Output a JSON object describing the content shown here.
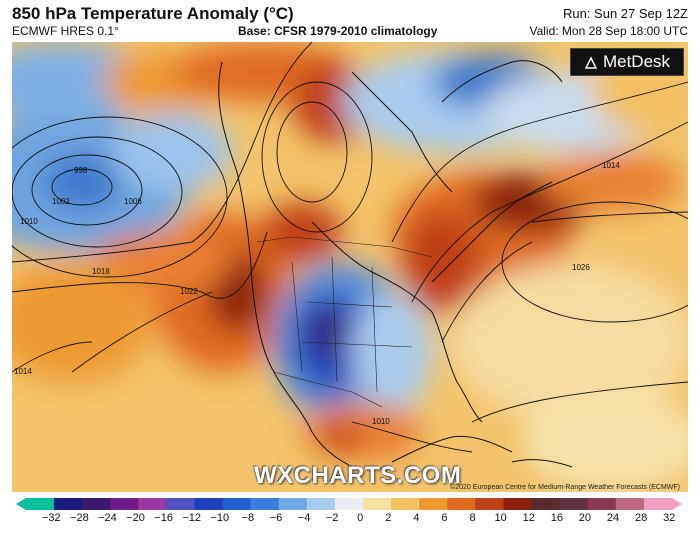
{
  "header": {
    "title": "850 hPa Temperature Anomaly (°C)",
    "model": "ECMWF HRES 0.1°",
    "base": "Base: CFSR 1979-2010 climatology",
    "run": "Run: Sun 27 Sep 12Z",
    "valid": "Valid: Mon 28 Sep 18:00 UTC"
  },
  "logo": {
    "text": "MetDesk"
  },
  "watermark": "WXCHARTS.COM",
  "copyright": "©2020 European Centre for Medium-Range Weather Forecasts (ECMWF)",
  "isobars": [
    {
      "label": "1010",
      "type": "pressure-contour"
    },
    {
      "label": "998",
      "type": "pressure-contour"
    },
    {
      "label": "1002",
      "type": "pressure-contour"
    },
    {
      "label": "1006",
      "type": "pressure-contour"
    },
    {
      "label": "1018",
      "type": "pressure-contour"
    },
    {
      "label": "1022",
      "type": "pressure-contour"
    },
    {
      "label": "1026",
      "type": "pressure-contour"
    },
    {
      "label": "1014",
      "type": "pressure-contour"
    }
  ],
  "colorbar": {
    "ticks": [
      "−32",
      "−28",
      "−24",
      "−20",
      "−16",
      "−12",
      "−10",
      "−8",
      "−6",
      "−4",
      "−2",
      "0",
      "2",
      "4",
      "6",
      "8",
      "10",
      "12",
      "16",
      "20",
      "24",
      "28",
      "32"
    ],
    "colors": [
      "#00c0a0",
      "#1a1a80",
      "#3a1a6a",
      "#6a1a8a",
      "#9a3aa0",
      "#5050c0",
      "#2040c0",
      "#2060d0",
      "#3a80e0",
      "#70a8e8",
      "#a8ccee",
      "#e8eef0",
      "#f6e2a0",
      "#f2c060",
      "#ee9a30",
      "#e06a20",
      "#c04018",
      "#8a2010",
      "#5a2a30",
      "#603040",
      "#8a3a50",
      "#c06a80",
      "#f0a0c0"
    ]
  }
}
